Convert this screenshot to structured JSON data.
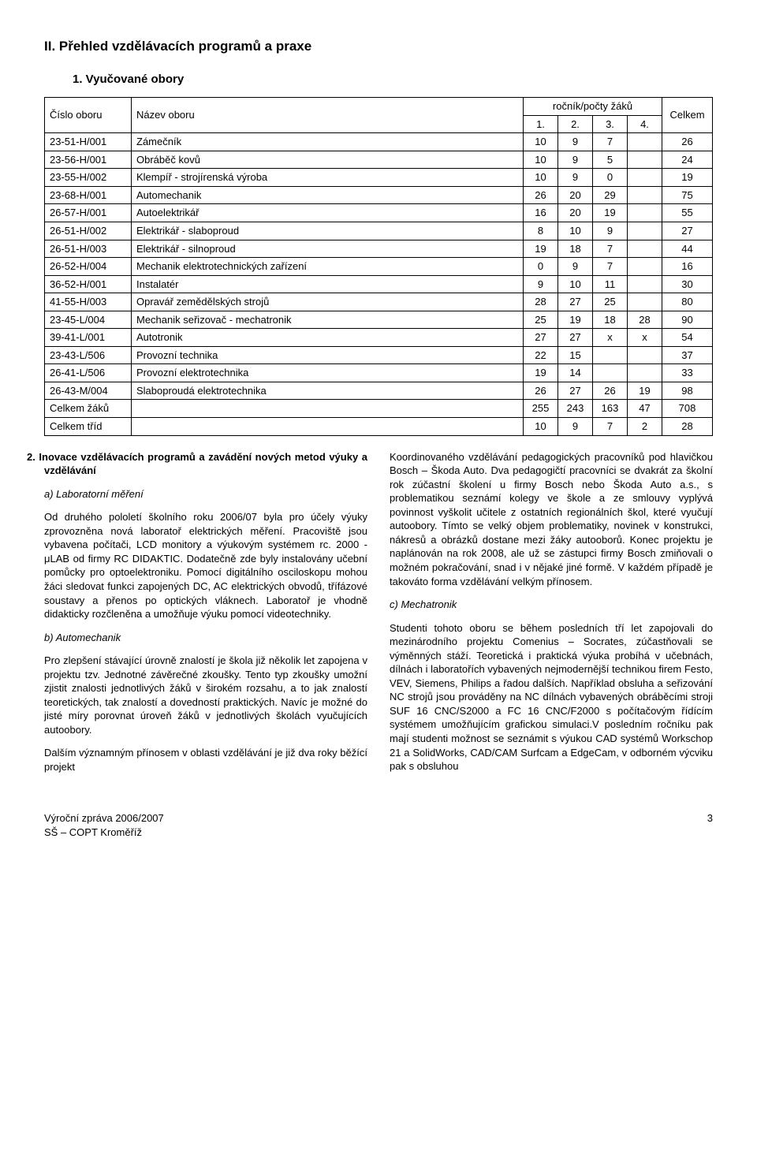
{
  "heading2": "II. Přehled vzdělávacích programů a praxe",
  "heading3": "1. Vyučované obory",
  "table": {
    "head": {
      "c1": "Číslo oboru",
      "c2": "Název oboru",
      "g": "ročník/počty žáků",
      "y1": "1.",
      "y2": "2.",
      "y3": "3.",
      "y4": "4.",
      "sum": "Celkem"
    },
    "rows": [
      {
        "code": "23-51-H/001",
        "name": "Zámečník",
        "v": [
          "10",
          "9",
          "7",
          ""
        ],
        "sum": "26"
      },
      {
        "code": "23-56-H/001",
        "name": "Obráběč kovů",
        "v": [
          "10",
          "9",
          "5",
          ""
        ],
        "sum": "24"
      },
      {
        "code": "23-55-H/002",
        "name": "Klempíř - strojírenská výroba",
        "v": [
          "10",
          "9",
          "0",
          ""
        ],
        "sum": "19"
      },
      {
        "code": "23-68-H/001",
        "name": "Automechanik",
        "v": [
          "26",
          "20",
          "29",
          ""
        ],
        "sum": "75"
      },
      {
        "code": "26-57-H/001",
        "name": "Autoelektrikář",
        "v": [
          "16",
          "20",
          "19",
          ""
        ],
        "sum": "55"
      },
      {
        "code": "26-51-H/002",
        "name": "Elektrikář - slaboproud",
        "v": [
          "8",
          "10",
          "9",
          ""
        ],
        "sum": "27"
      },
      {
        "code": "26-51-H/003",
        "name": "Elektrikář - silnoproud",
        "v": [
          "19",
          "18",
          "7",
          ""
        ],
        "sum": "44"
      },
      {
        "code": "26-52-H/004",
        "name": "Mechanik elektrotechnických zařízení",
        "v": [
          "0",
          "9",
          "7",
          ""
        ],
        "sum": "16"
      },
      {
        "code": "36-52-H/001",
        "name": "Instalatér",
        "v": [
          "9",
          "10",
          "11",
          ""
        ],
        "sum": "30"
      },
      {
        "code": "41-55-H/003",
        "name": "Opravář zemědělských strojů",
        "v": [
          "28",
          "27",
          "25",
          ""
        ],
        "sum": "80"
      },
      {
        "code": "23-45-L/004",
        "name": "Mechanik seřizovač - mechatronik",
        "v": [
          "25",
          "19",
          "18",
          "28"
        ],
        "sum": "90"
      },
      {
        "code": "39-41-L/001",
        "name": "Autotronik",
        "v": [
          "27",
          "27",
          "x",
          "x"
        ],
        "sum": "54"
      },
      {
        "code": "23-43-L/506",
        "name": "Provozní technika",
        "v": [
          "22",
          "15",
          "",
          ""
        ],
        "sum": "37"
      },
      {
        "code": "26-41-L/506",
        "name": "Provozní elektrotechnika",
        "v": [
          "19",
          "14",
          "",
          ""
        ],
        "sum": "33"
      },
      {
        "code": "26-43-M/004",
        "name": "Slaboproudá elektrotechnika",
        "v": [
          "26",
          "27",
          "26",
          "19"
        ],
        "sum": "98"
      }
    ],
    "totals": [
      {
        "label": "Celkem žáků",
        "v": [
          "255",
          "243",
          "163",
          "47"
        ],
        "sum": "708"
      },
      {
        "label": "Celkem tříd",
        "v": [
          "10",
          "9",
          "7",
          "2"
        ],
        "sum": "28"
      }
    ]
  },
  "body": {
    "sub2": "2. Inovace vzdělávacích programů a zavádění nových metod výuky a vzdělávání",
    "a_h": "a)  Laboratorní měření",
    "a_p1": "Od druhého pololetí školního roku 2006/07 byla pro účely výuky zprovozněna nová laboratoř elektrických měření. Pracoviště jsou vybavena počítači, LCD monitory a výukovým systémem rc. 2000 - μLAB od firmy RC DIDAKTIC. Dodatečně zde byly instalovány učební pomůcky pro optoelektroniku. Pomocí digitálního osciloskopu mohou žáci sledovat funkci zapojených DC, AC elektrických obvodů, třífázové soustavy a přenos po optických vláknech. Laboratoř je vhodně didakticky rozčleněna a umožňuje výuku pomocí videotechniky.",
    "b_h": "b)  Automechanik",
    "b_p1": "Pro zlepšení stávající úrovně znalostí je škola již několik let zapojena v projektu tzv. Jednotné závěrečné zkoušky. Tento typ zkoušky umožní zjistit znalosti jednotlivých žáků v širokém rozsahu, a to jak znalostí teoretických, tak znalostí a dovedností praktických. Navíc je možné do jisté míry porovnat úroveň žáků v jednotlivých školách vyučujících autoobory.",
    "b_p2": "Dalším významným přínosem v oblasti vzdělávání je již dva roky běžící projekt",
    "r_p1": "Koordinovaného vzdělávání pedagogických pracovníků pod hlavičkou Bosch – Škoda Auto. Dva pedagogičtí pracovníci se dvakrát za školní rok zúčastní školení u firmy Bosch nebo Škoda Auto a.s., s problematikou seznámí kolegy ve škole a ze smlouvy vyplývá povinnost vyškolit učitele z ostatních regionálních škol, které vyučují autoobory. Tímto se velký objem problematiky, novinek v konstrukci, nákresů a obrázků dostane mezi žáky autooborů. Konec projektu je naplánován na rok 2008, ale už se zástupci firmy Bosch zmiňovali o možném pokračování, snad i v nějaké jiné formě. V každém případě je takováto forma vzdělávání velkým přínosem.",
    "c_h": "c)  Mechatronik",
    "c_p1": "Studenti tohoto oboru se během posledních tří let zapojovali do mezinárodního projektu Comenius – Socrates, zúčastňovali se výměnných stáží. Teoretická i praktická výuka probíhá v učebnách, dílnách i laboratořích vybavených nejmodernější technikou firem Festo, VEV, Siemens, Philips a řadou dalších. Například obsluha a seřizování NC strojů jsou prováděny na NC dílnách vybavených obráběcími stroji SUF 16 CNC/S2000 a FC 16 CNC/F2000 s počítačovým řídícím systémem umožňujícím grafickou simulaci.V posledním ročníku pak mají studenti možnost se seznámit s výukou CAD systémů Workschop 21 a SolidWorks, CAD/CAM Surfcam a EdgeCam, v odborném výcviku pak s obsluhou"
  },
  "footer": {
    "l1": "Výroční zpráva 2006/2007",
    "l2": "SŠ – COPT Kroměříž",
    "page": "3"
  }
}
